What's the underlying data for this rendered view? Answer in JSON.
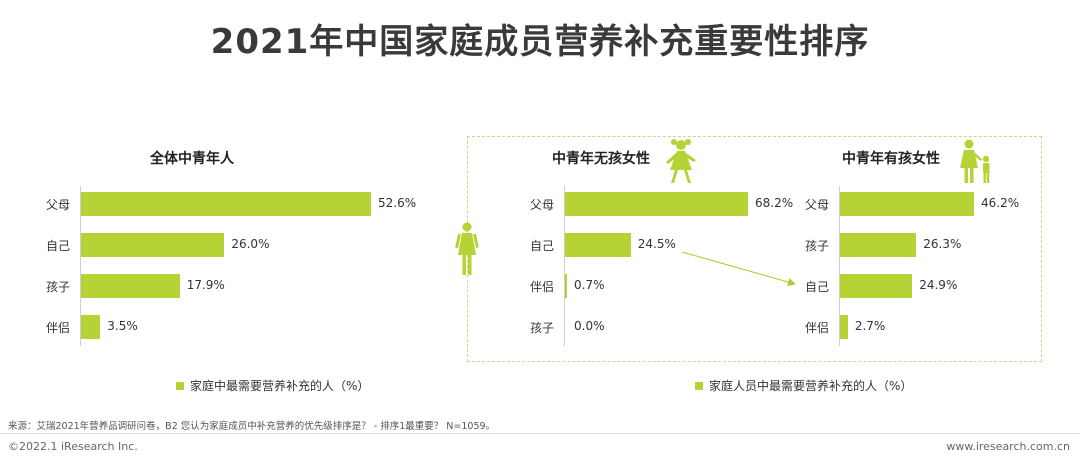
{
  "title": "2021年中国家庭成员营养补充重要性排序",
  "colors": {
    "bar": "#b5d334",
    "accent": "#a9cc2c",
    "dash": "#c5d98a"
  },
  "chart_data": [
    {
      "type": "bar",
      "orientation": "horizontal",
      "title": "全体中青年人",
      "categories": [
        "父母",
        "自己",
        "孩子",
        "伴侣"
      ],
      "values": [
        52.6,
        26.0,
        17.9,
        3.5
      ],
      "value_labels": [
        "52.6%",
        "26.0%",
        "17.9%",
        "3.5%"
      ],
      "xlim": [
        0,
        55
      ],
      "legend": "家庭中最需要营养补充的人（%）"
    },
    {
      "type": "bar",
      "orientation": "horizontal",
      "title": "中青年无孩女性",
      "categories": [
        "父母",
        "自己",
        "伴侣",
        "孩子"
      ],
      "values": [
        68.2,
        24.5,
        0.7,
        0.0
      ],
      "value_labels": [
        "68.2%",
        "24.5%",
        "0.7%",
        "0.0%"
      ],
      "xlim": [
        0,
        75
      ]
    },
    {
      "type": "bar",
      "orientation": "horizontal",
      "title": "中青年有孩女性",
      "categories": [
        "父母",
        "孩子",
        "自己",
        "伴侣"
      ],
      "values": [
        46.2,
        26.3,
        24.9,
        2.7
      ],
      "value_labels": [
        "46.2%",
        "26.3%",
        "24.9%",
        "2.7%"
      ],
      "xlim": [
        0,
        50
      ]
    }
  ],
  "legend_right": "家庭人员中最需要营养补充的人（%）",
  "icons": [
    "woman-icon",
    "girl-icon",
    "mother-child-icon"
  ],
  "source": "来源：艾瑞2021年营养品调研问卷，B2 您认为家庭成员中补充营养的优先级排序是？ - 排序1最重要？ N=1059。",
  "footer": {
    "copyright": "©2022.1 iResearch Inc.",
    "website": "www.iresearch.com.cn"
  }
}
